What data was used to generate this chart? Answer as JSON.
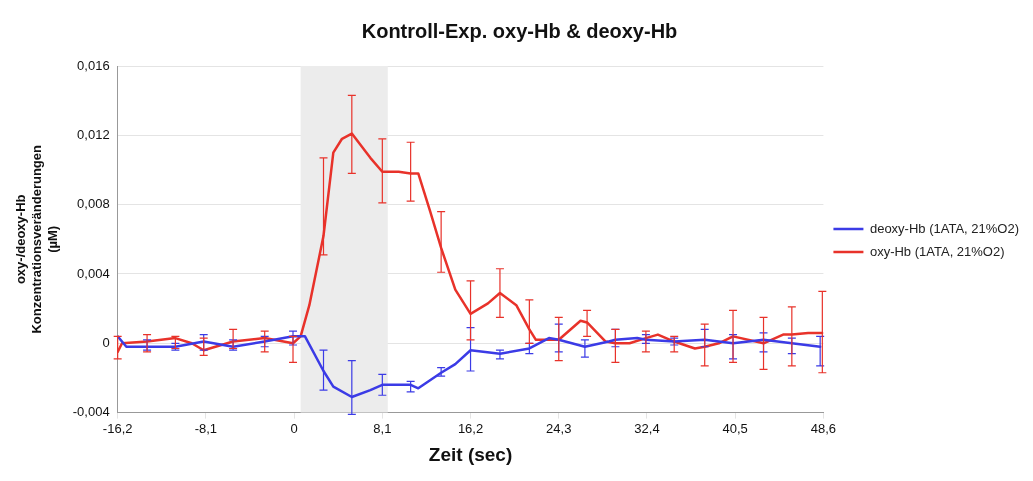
{
  "chart_data": {
    "type": "line",
    "title": "Kontroll-Exp. oxy-Hb & deoxy-Hb",
    "xlabel": "Zeit (sec)",
    "ylabel": "oxy-/deoxy-Hb\nKonzentrationsveränderungen\n(µM)",
    "xlim": [
      -16.2,
      48.6
    ],
    "xticks": [
      {
        "value": -16.2,
        "label": "-16,2"
      },
      {
        "value": -8.1,
        "label": "-8,1"
      },
      0,
      {
        "value": 8.1,
        "label": "8,1"
      },
      {
        "value": 16.2,
        "label": "16,2"
      },
      {
        "value": 24.3,
        "label": "24,3"
      },
      {
        "value": 32.4,
        "label": "32,4"
      },
      {
        "value": 40.5,
        "label": "40,5"
      },
      {
        "value": 48.6,
        "label": "48,6"
      }
    ],
    "ylim": [
      -0.004,
      0.016
    ],
    "yticks": [
      {
        "value": -0.004,
        "label": "-0,004"
      },
      0,
      {
        "value": 0.004,
        "label": "0,004"
      },
      {
        "value": 0.008,
        "label": "0,008"
      },
      {
        "value": 0.012,
        "label": "0,012"
      },
      {
        "value": 0.016,
        "label": "0,016"
      }
    ],
    "grid": "y",
    "legend": "right",
    "marker": "none",
    "line_style": "solid",
    "bands": [
      {
        "axis": "x",
        "from": 0.6,
        "to": 8.6,
        "color": "#ececec"
      }
    ],
    "series": [
      {
        "name": "deoxy-Hb (1ATA, 21%O2)",
        "color": "#3b3be6",
        "x": [
          -16.2,
          -15.4,
          -13.5,
          -10.9,
          -8.3,
          -5.6,
          -2.7,
          -0.1,
          1.0,
          2.7,
          3.6,
          5.3,
          7.0,
          8.1,
          10.7,
          11.4,
          13.5,
          14.8,
          16.2,
          18.9,
          21.6,
          23.4,
          24.3,
          26.7,
          28.9,
          29.5,
          31.5,
          32.3,
          34.9,
          37.7,
          40.3,
          43.1,
          45.7,
          48.3
        ],
        "values": [
          0.0004,
          -0.0002,
          -0.0002,
          -0.0002,
          0.0001,
          -0.0002,
          0.0001,
          0.0004,
          0.0004,
          -0.0016,
          -0.0025,
          -0.0031,
          -0.0027,
          -0.0024,
          -0.0024,
          -0.0026,
          -0.0017,
          -0.0012,
          -0.0004,
          -0.0006,
          -0.0003,
          0.0003,
          0.0002,
          -0.0002,
          0.0001,
          0.0002,
          0.0003,
          0.0002,
          0.0001,
          0.0002,
          0.0,
          0.0002,
          0.0,
          -0.0002
        ],
        "errors": [
          null,
          null,
          [
            -0.0004,
            0.0002
          ],
          [
            -0.0004,
            0.0
          ],
          [
            -0.0004,
            0.0005
          ],
          [
            -0.0004,
            0.0002
          ],
          [
            -0.0002,
            0.0004
          ],
          [
            -0.0001,
            0.0007
          ],
          null,
          [
            -0.0027,
            -0.0004
          ],
          null,
          [
            -0.0041,
            -0.001
          ],
          null,
          [
            -0.003,
            -0.0018
          ],
          [
            -0.0028,
            -0.0022
          ],
          null,
          [
            -0.0019,
            -0.0014
          ],
          null,
          [
            -0.0016,
            0.0009
          ],
          [
            -0.0009,
            -0.0004
          ],
          [
            -0.0006,
            0.0
          ],
          null,
          [
            -0.0005,
            0.0011
          ],
          [
            -0.0008,
            0.0002
          ],
          null,
          [
            -0.0002,
            0.0008
          ],
          null,
          [
            0.0,
            0.0005
          ],
          [
            -0.0001,
            0.0003
          ],
          [
            -0.0002,
            0.0008
          ],
          [
            -0.0009,
            0.0005
          ],
          [
            -0.0005,
            0.0006
          ],
          [
            -0.0006,
            0.0003
          ],
          [
            -0.0013,
            0.0004
          ]
        ]
      },
      {
        "name": "oxy-Hb (1ATA, 21%O2)",
        "color": "#e8322a",
        "x": [
          -16.2,
          -15.8,
          -13.5,
          -10.9,
          -9.4,
          -8.3,
          -5.6,
          -2.7,
          -0.1,
          0.6,
          1.4,
          2.7,
          3.6,
          4.4,
          5.3,
          7.0,
          8.1,
          9.6,
          10.7,
          11.4,
          12.5,
          13.5,
          14.8,
          16.2,
          17.8,
          18.9,
          20.4,
          21.6,
          22.2,
          24.3,
          26.3,
          26.9,
          28.6,
          29.5,
          30.8,
          32.3,
          33.4,
          34.9,
          36.8,
          37.7,
          39.0,
          40.3,
          43.1,
          44.9,
          45.7,
          47.2,
          48.5
        ],
        "values": [
          -0.0005,
          0.0,
          0.0001,
          0.0003,
          0.0,
          -0.0004,
          0.0001,
          0.0003,
          0.0,
          0.0004,
          0.0022,
          0.0062,
          0.011,
          0.0118,
          0.0121,
          0.0107,
          0.0099,
          0.0099,
          0.0098,
          0.0098,
          0.0076,
          0.0055,
          0.0031,
          0.0017,
          0.0023,
          0.0029,
          0.0022,
          0.0008,
          0.0002,
          0.0002,
          0.0013,
          0.0012,
          0.0001,
          0.0,
          0.0,
          0.0003,
          0.0005,
          0.0001,
          -0.0003,
          -0.0002,
          0.0,
          0.0004,
          0.0,
          0.0005,
          0.0005,
          0.0006,
          0.0006
        ],
        "errors": [
          [
            -0.0009,
            0.0004
          ],
          null,
          [
            -0.0005,
            0.0005
          ],
          [
            -0.0003,
            0.0004
          ],
          null,
          [
            -0.0007,
            0.0003
          ],
          [
            -0.0003,
            0.0008
          ],
          [
            -0.0005,
            0.0007
          ],
          [
            -0.0011,
            0.0004
          ],
          null,
          null,
          [
            0.0051,
            0.0107
          ],
          null,
          null,
          [
            0.0098,
            0.0143
          ],
          null,
          [
            0.0081,
            0.0118
          ],
          null,
          [
            0.0082,
            0.0116
          ],
          null,
          null,
          [
            0.0041,
            0.0076
          ],
          null,
          [
            0.0002,
            0.0036
          ],
          null,
          [
            0.0015,
            0.0043
          ],
          null,
          [
            0.0,
            0.0025
          ],
          null,
          [
            -0.001,
            0.0015
          ],
          null,
          [
            0.0004,
            0.0019
          ],
          null,
          [
            -0.0011,
            0.0008
          ],
          null,
          [
            -0.0005,
            0.0007
          ],
          null,
          [
            -0.0005,
            0.0004
          ],
          null,
          [
            -0.0013,
            0.0011
          ],
          null,
          [
            -0.0011,
            0.0019
          ],
          [
            -0.0015,
            0.0015
          ],
          null,
          [
            -0.0013,
            0.0021
          ],
          null,
          [
            -0.0017,
            0.003
          ]
        ]
      }
    ]
  }
}
